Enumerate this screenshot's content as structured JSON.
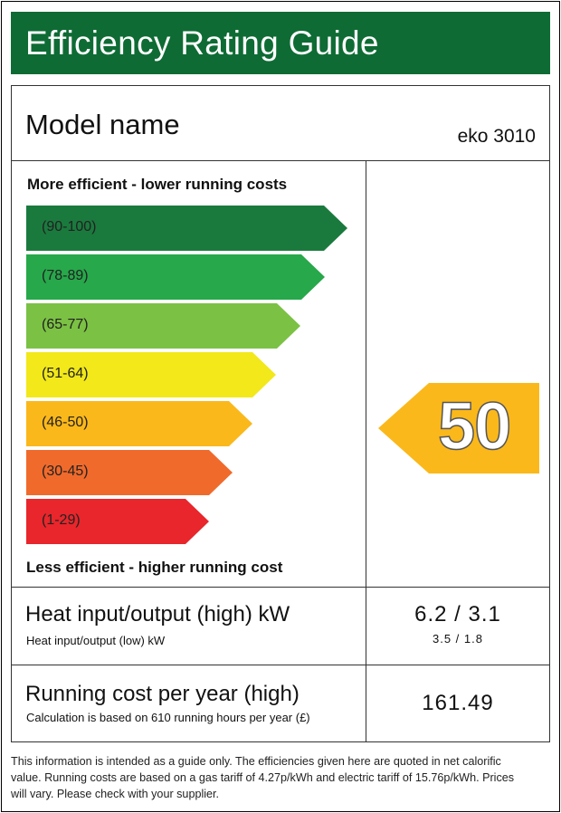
{
  "header": {
    "title": "Efficiency Rating Guide",
    "background": "#0e6b34"
  },
  "model": {
    "label": "Model name",
    "value": "eko 3010"
  },
  "scale": {
    "top_label": "More efficient - lower running costs",
    "bottom_label": "Less efficient - higher running cost",
    "bands": [
      {
        "range": "(90-100)",
        "color": "#1a7a3d"
      },
      {
        "range": "(78-89)",
        "color": "#27a84a"
      },
      {
        "range": "(65-77)",
        "color": "#7bc144"
      },
      {
        "range": "(51-64)",
        "color": "#f2e81a"
      },
      {
        "range": "(46-50)",
        "color": "#fbb81a"
      },
      {
        "range": "(30-45)",
        "color": "#f06a2b"
      },
      {
        "range": "(1-29)",
        "color": "#e8262b"
      }
    ]
  },
  "rating": {
    "value": "50",
    "color": "#fbb81a"
  },
  "heat": {
    "label": "Heat input/output (high) kW",
    "sub_label": "Heat input/output (low) kW",
    "value": "6.2 / 3.1",
    "sub_value": "3.5 / 1.8"
  },
  "cost": {
    "label": "Running cost per year (high)",
    "sub_label": "Calculation is based on 610 running hours per year (£)",
    "value": "161.49"
  },
  "footer": {
    "line1": "This information is intended as a guide only. The efficiencies given here are quoted in net calorific",
    "line2": "value. Running costs are based on a gas tariff of 4.27p/kWh and electric tariff of 15.76p/kWh. Prices",
    "line3": "will vary. Please check with your supplier."
  }
}
